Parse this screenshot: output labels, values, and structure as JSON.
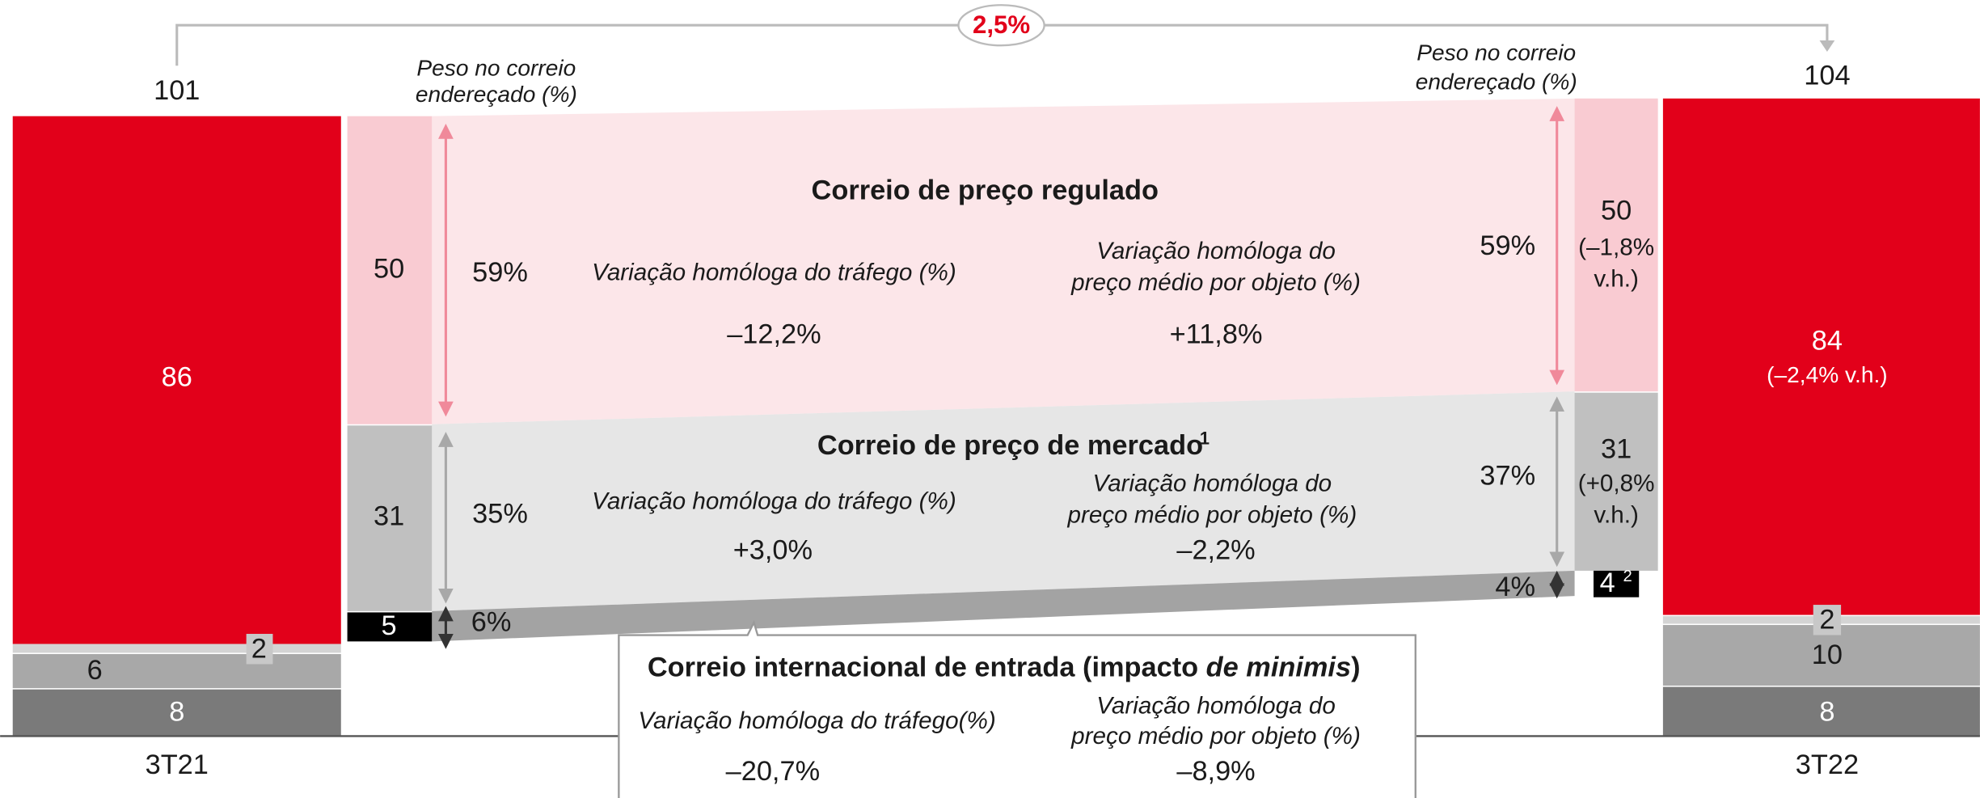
{
  "growth": "2,5%",
  "left_bar": {
    "total": "101",
    "period": "3T21",
    "segments": [
      "86",
      "2",
      "6",
      "8"
    ]
  },
  "right_bar": {
    "total": "104",
    "period": "3T22",
    "segments": [
      "84",
      "(–2,4% v.h.)",
      "2",
      "10",
      "8"
    ]
  },
  "weight_header": [
    "Peso no correio",
    "endereçado (%)"
  ],
  "left_detail": [
    "50",
    "31",
    "5"
  ],
  "right_detail": {
    "regulated": [
      "50",
      "(–1,8%",
      "v.h.)"
    ],
    "market": [
      "31",
      "(+0,8%",
      "v.h.)"
    ],
    "inbound": "4",
    "inbound_note": "2"
  },
  "left_shares": [
    "59%",
    "35%",
    "6%"
  ],
  "right_shares": [
    "59%",
    "37%",
    "4%"
  ],
  "regulated": {
    "title": "Correio de preço regulado",
    "traffic_label": "Variação homóloga do tráfego (%)",
    "traffic": "–12,2%",
    "price_label": [
      "Variação homóloga do",
      "preço médio por objeto (%)"
    ],
    "price": "+11,8%"
  },
  "market": {
    "title": "Correio de preço de mercado",
    "note": "1",
    "traffic_label": "Variação homóloga do tráfego (%)",
    "traffic": "+3,0%",
    "price_label": [
      "Variação homóloga do",
      "preço médio por objeto (%)"
    ],
    "price": "–2,2%"
  },
  "inbound": {
    "title": "Correio internacional de entrada (impacto ",
    "title_italic": "de minimis",
    "title_end": ")",
    "traffic_label": "Variação homóloga do tráfego(%)",
    "traffic": "–20,7%",
    "price_label": [
      "Variação homóloga do",
      "preço médio por objeto (%)"
    ],
    "price": "–8,9%"
  }
}
